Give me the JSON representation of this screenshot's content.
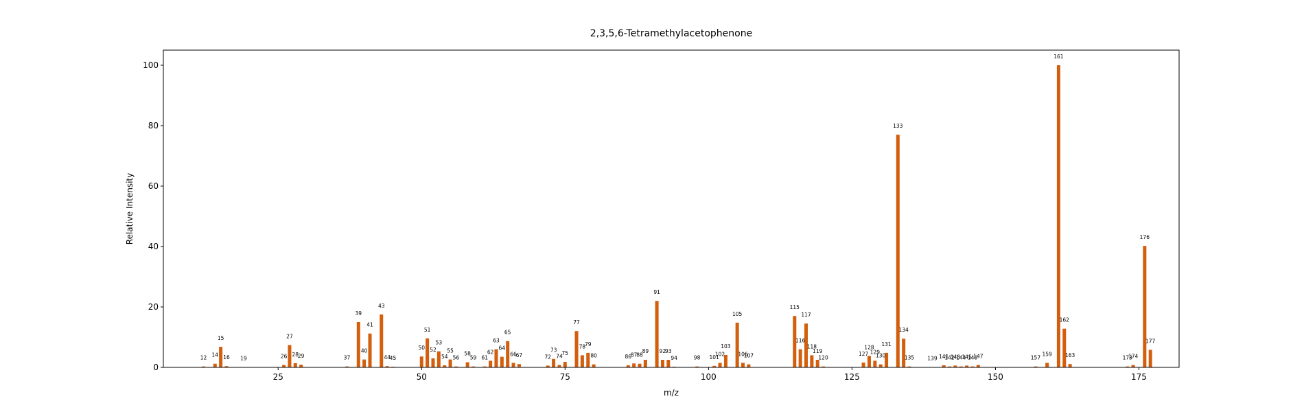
{
  "chart_data": {
    "type": "bar",
    "title": "2,3,5,6-Tetramethylacetophenone",
    "xlabel": "m/z",
    "ylabel": "Relative Intensity",
    "xlim": [
      5,
      182
    ],
    "ylim": [
      0,
      105
    ],
    "xticks": [
      25,
      50,
      75,
      100,
      125,
      150,
      175
    ],
    "yticks": [
      0,
      20,
      40,
      60,
      80,
      100
    ],
    "grid": false,
    "bar_color": "#d35f0e",
    "series": [
      {
        "x": [
          12,
          14,
          15,
          16,
          19,
          26,
          27,
          28,
          29,
          37,
          39,
          40,
          41,
          43,
          44,
          45,
          50,
          51,
          52,
          53,
          54,
          55,
          56,
          58,
          59,
          61,
          62,
          63,
          64,
          65,
          66,
          67,
          72,
          73,
          74,
          75,
          77,
          78,
          79,
          80,
          86,
          87,
          88,
          89,
          91,
          92,
          93,
          94,
          98,
          101,
          102,
          103,
          105,
          106,
          107,
          115,
          116,
          117,
          118,
          119,
          120,
          127,
          128,
          129,
          130,
          131,
          133,
          134,
          135,
          139,
          141,
          142,
          143,
          144,
          145,
          146,
          147,
          157,
          159,
          161,
          162,
          163,
          173,
          174,
          176,
          177
        ],
        "values": [
          0.3,
          1.2,
          6.8,
          0.4,
          0.1,
          0.8,
          7.4,
          1.4,
          0.9,
          0.3,
          15.0,
          2.6,
          11.2,
          17.5,
          0.4,
          0.2,
          3.6,
          9.6,
          3.0,
          5.3,
          0.7,
          2.6,
          0.3,
          1.7,
          0.3,
          0.3,
          2.2,
          6.0,
          3.5,
          8.7,
          1.5,
          1.1,
          0.6,
          2.8,
          0.8,
          1.8,
          12.0,
          4.0,
          4.8,
          1.0,
          0.7,
          1.3,
          1.2,
          2.5,
          22.0,
          2.5,
          2.5,
          0.2,
          0.3,
          0.5,
          1.5,
          4.1,
          14.8,
          1.5,
          1.0,
          17.0,
          6.0,
          14.5,
          4.0,
          2.5,
          0.3,
          1.6,
          3.8,
          2.2,
          1.0,
          4.8,
          77.0,
          9.5,
          0.3,
          0.1,
          0.7,
          0.3,
          0.6,
          0.3,
          0.6,
          0.3,
          0.8,
          0.3,
          1.5,
          100.0,
          12.8,
          1.1,
          0.3,
          0.8,
          40.2,
          5.8
        ]
      }
    ]
  }
}
